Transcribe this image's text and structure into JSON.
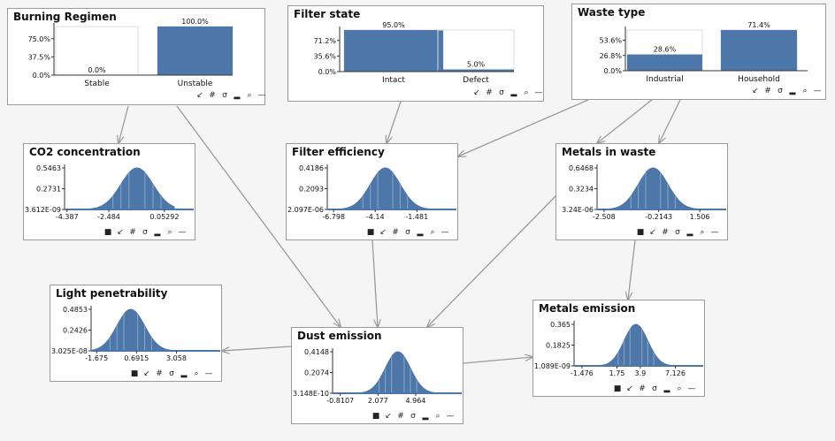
{
  "colors": {
    "bar": "#4d77a8",
    "curve": "#4d77a8",
    "edge": "#9a9a9a",
    "gridline": "#cccccc"
  },
  "toolbar_icons": [
    "square-icon",
    "arrow-icon",
    "hash-icon",
    "sigma-icon",
    "bar-chart-icon",
    "search-icon",
    "minus-icon"
  ],
  "nodes": [
    {
      "id": "burning-regimen",
      "title": "Burning Regimen",
      "kind": "discrete",
      "chart_data": {
        "type": "bar",
        "categories": [
          "Stable",
          "Unstable"
        ],
        "values": [
          0.0,
          100.0
        ],
        "value_labels": [
          "0.0%",
          "100.0%"
        ],
        "yticks": [
          "0.0%",
          "37.5%",
          "75.0%"
        ],
        "ylim": [
          0,
          100
        ]
      }
    },
    {
      "id": "filter-state",
      "title": "Filter state",
      "kind": "discrete",
      "chart_data": {
        "type": "bar",
        "categories": [
          "Intact",
          "Defect"
        ],
        "values": [
          95.0,
          5.0
        ],
        "value_labels": [
          "95.0%",
          "5.0%"
        ],
        "yticks": [
          "0.0%",
          "35.6%",
          "71.2%"
        ],
        "ylim": [
          0,
          95
        ]
      }
    },
    {
      "id": "waste-type",
      "title": "Waste type",
      "kind": "discrete",
      "chart_data": {
        "type": "bar",
        "categories": [
          "Industrial",
          "Household"
        ],
        "values": [
          28.6,
          71.4
        ],
        "value_labels": [
          "28.6%",
          "71.4%"
        ],
        "yticks": [
          "0.0%",
          "26.8%",
          "53.6%"
        ],
        "ylim": [
          0,
          71.4
        ]
      }
    },
    {
      "id": "co2-concentration",
      "title": "CO2 concentration",
      "kind": "continuous",
      "chart_data": {
        "type": "area",
        "xticks": [
          "-4.387",
          "-2.484",
          "0.05292"
        ],
        "yticks": [
          "3.612E-09",
          "0.2731",
          "0.5463"
        ],
        "mean": -1.2,
        "std": 0.73,
        "xrange": [
          -4.5,
          0.5
        ],
        "xtick_values": [
          -4.387,
          -2.484,
          0.05292
        ]
      }
    },
    {
      "id": "filter-efficiency",
      "title": "Filter efficiency",
      "kind": "continuous",
      "chart_data": {
        "type": "area",
        "xticks": [
          "-6.798",
          "-4.14",
          "-1.481"
        ],
        "yticks": [
          "2.097E-06",
          "0.2093",
          "0.4186"
        ],
        "mean": -3.5,
        "std": 0.95,
        "xrange": [
          -7.2,
          -0.2
        ],
        "xtick_values": [
          -6.798,
          -4.14,
          -1.481
        ]
      }
    },
    {
      "id": "metals-in-waste",
      "title": "Metals in waste",
      "kind": "continuous",
      "chart_data": {
        "type": "area",
        "xticks": [
          "-2.508",
          "-0.2143",
          "1.506"
        ],
        "yticks": [
          "3.24E-06",
          "0.3234",
          "0.6468"
        ],
        "mean": -0.45,
        "std": 0.62,
        "xrange": [
          -2.8,
          1.8
        ],
        "xtick_values": [
          -2.508,
          -0.2143,
          1.506
        ]
      }
    },
    {
      "id": "light-penetrability",
      "title": "Light penetrability",
      "kind": "continuous",
      "chart_data": {
        "type": "area",
        "xticks": [
          "-1.675",
          "0.6915",
          "3.058"
        ],
        "yticks": [
          "3.025E-08",
          "0.2426",
          "0.4853"
        ],
        "mean": 0.35,
        "std": 0.82,
        "xrange": [
          -2.0,
          4.5
        ],
        "xtick_values": [
          -1.675,
          0.6915,
          3.058
        ]
      }
    },
    {
      "id": "dust-emission",
      "title": "Dust emission",
      "kind": "continuous",
      "chart_data": {
        "type": "area",
        "xticks": [
          "-0.8107",
          "2.077",
          "4.964"
        ],
        "yticks": [
          "3.148E-10",
          "0.2074",
          "0.4148"
        ],
        "mean": 3.6,
        "std": 0.96,
        "xrange": [
          -1.4,
          7.0
        ],
        "xtick_values": [
          -0.8107,
          2.077,
          4.964
        ]
      }
    },
    {
      "id": "metals-emission",
      "title": "Metals emission",
      "kind": "continuous",
      "chart_data": {
        "type": "area",
        "xticks": [
          "-1.476",
          "1.75",
          "3.9",
          "7.126"
        ],
        "yticks": [
          "1.089E-09",
          "0.1825",
          "0.365"
        ],
        "mean": 3.5,
        "std": 1.09,
        "xrange": [
          -2.2,
          7.9
        ],
        "xtick_values": [
          -1.476,
          1.75,
          3.9,
          7.126
        ]
      }
    }
  ],
  "edges": [
    {
      "from": "burning-regimen",
      "to": "co2-concentration"
    },
    {
      "from": "burning-regimen",
      "to": "dust-emission"
    },
    {
      "from": "filter-state",
      "to": "filter-efficiency"
    },
    {
      "from": "waste-type",
      "to": "filter-efficiency"
    },
    {
      "from": "waste-type",
      "to": "metals-in-waste"
    },
    {
      "from": "waste-type",
      "to": "metals-in-waste"
    },
    {
      "from": "filter-efficiency",
      "to": "dust-emission"
    },
    {
      "from": "metals-in-waste",
      "to": "dust-emission"
    },
    {
      "from": "metals-in-waste",
      "to": "metals-emission"
    },
    {
      "from": "dust-emission",
      "to": "light-penetrability"
    },
    {
      "from": "dust-emission",
      "to": "metals-emission"
    }
  ]
}
